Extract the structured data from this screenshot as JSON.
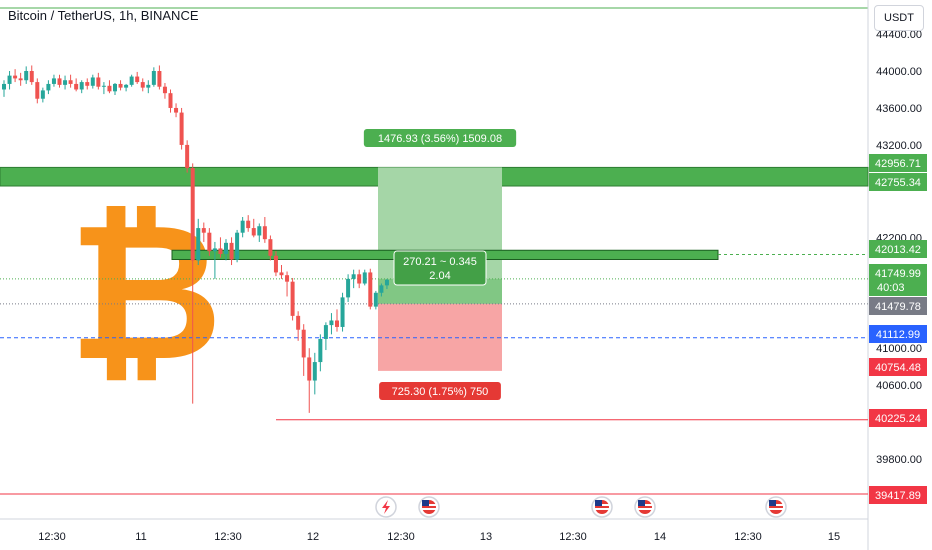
{
  "header": {
    "symbol_title": "Bitcoin / TetherUS, 1h, BINANCE",
    "currency_button": "USDT"
  },
  "chart_data": {
    "type": "candlestick",
    "title": "Bitcoin / TetherUS, 1h, BINANCE",
    "y_range": [
      39600,
      44500
    ],
    "x_ticks": [
      "12:30",
      "11",
      "12:30",
      "12",
      "12:30",
      "13",
      "12:30",
      "14",
      "12:30",
      "15"
    ],
    "y_ticks": [
      44400.0,
      44000.0,
      43600.0,
      43200.0,
      42200.0,
      41000.0,
      40600.0,
      39800.0
    ],
    "price_labels": [
      {
        "value": "42956.71",
        "color": "#4caf50"
      },
      {
        "value": "42755.34",
        "color": "#4caf50"
      },
      {
        "value": "42013.42",
        "color": "#4caf50"
      },
      {
        "value": "41749.99",
        "sub": "40:03",
        "color": "#4caf50"
      },
      {
        "value": "41479.78",
        "color": "#787b86"
      },
      {
        "value": "41112.99",
        "color": "#2962ff"
      },
      {
        "value": "40754.48",
        "color": "#f23645"
      },
      {
        "value": "40225.24",
        "color": "#f23645"
      },
      {
        "value": "39417.89",
        "color": "#f23645"
      }
    ],
    "zones": [
      {
        "name": "resistance-zone",
        "from": 42755.34,
        "to": 42956.71,
        "color": "#4caf50"
      },
      {
        "name": "support-line",
        "from": 41960,
        "to": 42060,
        "color": "#4caf50"
      }
    ],
    "position": {
      "entry": 41479.78,
      "target": 42956.71,
      "stop": 40754.48,
      "target_label": "1476.93 (3.56%) 1509.08",
      "stop_label": "725.30 (1.75%) 750",
      "center_label_line1": "270.21 ~ 0.345",
      "center_label_line2": "2.04"
    },
    "candles": [
      {
        "o": 43800,
        "h": 43900,
        "l": 43720,
        "c": 43860
      },
      {
        "o": 43860,
        "h": 44000,
        "l": 43800,
        "c": 43950
      },
      {
        "o": 43950,
        "h": 44020,
        "l": 43880,
        "c": 43920
      },
      {
        "o": 43920,
        "h": 43980,
        "l": 43840,
        "c": 43900
      },
      {
        "o": 43900,
        "h": 44050,
        "l": 43860,
        "c": 44000
      },
      {
        "o": 44000,
        "h": 44060,
        "l": 43850,
        "c": 43880
      },
      {
        "o": 43880,
        "h": 43920,
        "l": 43650,
        "c": 43700
      },
      {
        "o": 43700,
        "h": 43820,
        "l": 43660,
        "c": 43790
      },
      {
        "o": 43790,
        "h": 43900,
        "l": 43750,
        "c": 43860
      },
      {
        "o": 43860,
        "h": 43960,
        "l": 43830,
        "c": 43920
      },
      {
        "o": 43920,
        "h": 43960,
        "l": 43820,
        "c": 43850
      },
      {
        "o": 43850,
        "h": 43950,
        "l": 43800,
        "c": 43900
      },
      {
        "o": 43900,
        "h": 43960,
        "l": 43820,
        "c": 43860
      },
      {
        "o": 43860,
        "h": 43920,
        "l": 43780,
        "c": 43800
      },
      {
        "o": 43800,
        "h": 43900,
        "l": 43760,
        "c": 43880
      },
      {
        "o": 43880,
        "h": 43920,
        "l": 43800,
        "c": 43840
      },
      {
        "o": 43840,
        "h": 43960,
        "l": 43810,
        "c": 43930
      },
      {
        "o": 43930,
        "h": 43980,
        "l": 43800,
        "c": 43830
      },
      {
        "o": 43830,
        "h": 43880,
        "l": 43750,
        "c": 43840
      },
      {
        "o": 43840,
        "h": 43900,
        "l": 43760,
        "c": 43780
      },
      {
        "o": 43780,
        "h": 43870,
        "l": 43740,
        "c": 43860
      },
      {
        "o": 43860,
        "h": 43900,
        "l": 43790,
        "c": 43820
      },
      {
        "o": 43820,
        "h": 43860,
        "l": 43780,
        "c": 43850
      },
      {
        "o": 43850,
        "h": 43960,
        "l": 43830,
        "c": 43940
      },
      {
        "o": 43940,
        "h": 43990,
        "l": 43860,
        "c": 43880
      },
      {
        "o": 43880,
        "h": 43920,
        "l": 43780,
        "c": 43820
      },
      {
        "o": 43820,
        "h": 43900,
        "l": 43760,
        "c": 43850
      },
      {
        "o": 43850,
        "h": 44040,
        "l": 43830,
        "c": 44000
      },
      {
        "o": 44000,
        "h": 44060,
        "l": 43800,
        "c": 43830
      },
      {
        "o": 43830,
        "h": 43870,
        "l": 43700,
        "c": 43760
      },
      {
        "o": 43760,
        "h": 43800,
        "l": 43550,
        "c": 43600
      },
      {
        "o": 43600,
        "h": 43650,
        "l": 43500,
        "c": 43550
      },
      {
        "o": 43550,
        "h": 43600,
        "l": 43150,
        "c": 43200
      },
      {
        "o": 43200,
        "h": 43250,
        "l": 42900,
        "c": 42950
      },
      {
        "o": 42950,
        "h": 43000,
        "l": 40400,
        "c": 41950
      },
      {
        "o": 41950,
        "h": 42400,
        "l": 41900,
        "c": 42300
      },
      {
        "o": 42300,
        "h": 42360,
        "l": 42150,
        "c": 42250
      },
      {
        "o": 42250,
        "h": 42300,
        "l": 42000,
        "c": 42050
      },
      {
        "o": 42050,
        "h": 42150,
        "l": 41750,
        "c": 42080
      },
      {
        "o": 42080,
        "h": 42200,
        "l": 41980,
        "c": 42020
      },
      {
        "o": 42020,
        "h": 42180,
        "l": 41950,
        "c": 42140
      },
      {
        "o": 42140,
        "h": 42200,
        "l": 41900,
        "c": 41960
      },
      {
        "o": 41960,
        "h": 42280,
        "l": 41930,
        "c": 42250
      },
      {
        "o": 42250,
        "h": 42420,
        "l": 42200,
        "c": 42380
      },
      {
        "o": 42380,
        "h": 42440,
        "l": 42260,
        "c": 42300
      },
      {
        "o": 42300,
        "h": 42400,
        "l": 42200,
        "c": 42220
      },
      {
        "o": 42220,
        "h": 42350,
        "l": 42150,
        "c": 42320
      },
      {
        "o": 42320,
        "h": 42420,
        "l": 42140,
        "c": 42180
      },
      {
        "o": 42180,
        "h": 42220,
        "l": 41950,
        "c": 42000
      },
      {
        "o": 42000,
        "h": 42050,
        "l": 41780,
        "c": 41820
      },
      {
        "o": 41820,
        "h": 41900,
        "l": 41750,
        "c": 41790
      },
      {
        "o": 41790,
        "h": 41830,
        "l": 41560,
        "c": 41720
      },
      {
        "o": 41720,
        "h": 41760,
        "l": 41300,
        "c": 41350
      },
      {
        "o": 41350,
        "h": 41400,
        "l": 41080,
        "c": 41200
      },
      {
        "o": 41200,
        "h": 41260,
        "l": 40700,
        "c": 40900
      },
      {
        "o": 40900,
        "h": 41000,
        "l": 40300,
        "c": 40650
      },
      {
        "o": 40650,
        "h": 40950,
        "l": 40500,
        "c": 40850
      },
      {
        "o": 40850,
        "h": 41150,
        "l": 40750,
        "c": 41100
      },
      {
        "o": 41100,
        "h": 41280,
        "l": 40980,
        "c": 41250
      },
      {
        "o": 41250,
        "h": 41380,
        "l": 41150,
        "c": 41300
      },
      {
        "o": 41300,
        "h": 41420,
        "l": 41180,
        "c": 41230
      },
      {
        "o": 41230,
        "h": 41600,
        "l": 41180,
        "c": 41550
      },
      {
        "o": 41550,
        "h": 41800,
        "l": 41500,
        "c": 41750
      },
      {
        "o": 41750,
        "h": 41850,
        "l": 41650,
        "c": 41800
      },
      {
        "o": 41800,
        "h": 41850,
        "l": 41650,
        "c": 41700
      },
      {
        "o": 41700,
        "h": 41850,
        "l": 41680,
        "c": 41820
      },
      {
        "o": 41820,
        "h": 41860,
        "l": 41420,
        "c": 41450
      },
      {
        "o": 41450,
        "h": 41620,
        "l": 41420,
        "c": 41600
      },
      {
        "o": 41600,
        "h": 41700,
        "l": 41560,
        "c": 41680
      },
      {
        "o": 41680,
        "h": 41750,
        "l": 41640,
        "c": 41740
      }
    ]
  },
  "colors": {
    "up": "#26a69a",
    "down": "#ef5350",
    "zone": "#4caf50",
    "bitcoin_logo": "#f7931a",
    "target_fill": "#a5d6a7",
    "stop_fill": "#f7a5a5"
  },
  "events": [
    {
      "icon": "lightning-icon"
    },
    {
      "icon": "us-flag-icon"
    },
    {
      "icon": "us-flag-icon"
    },
    {
      "icon": "us-flag-icon"
    },
    {
      "icon": "us-flag-icon"
    }
  ]
}
